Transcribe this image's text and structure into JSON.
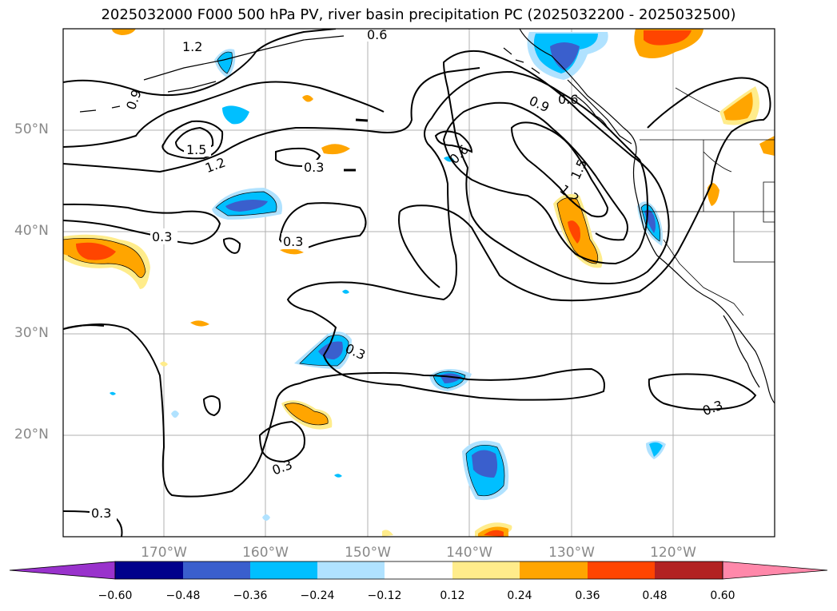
{
  "title": "2025032000 F000 500 hPa PV, river basin precipitation PC (2025032200 - 2025032500)",
  "lat_labels": [
    "50°N",
    "40°N",
    "30°N",
    "20°N"
  ],
  "lon_labels": [
    "170°W",
    "160°W",
    "150°W",
    "140°W",
    "130°W",
    "120°W"
  ],
  "contour_labels": [
    "1.2",
    "0.6",
    "0.9",
    "1.5",
    "1.2",
    "0.3",
    "0.6",
    "0.9",
    "0.6",
    "1.5",
    "1.2",
    "0.3",
    "0.3",
    "0.3",
    "0.3",
    "0.3",
    "0.3"
  ],
  "colorbar": {
    "ticks": [
      "−0.60",
      "−0.48",
      "−0.36",
      "−0.24",
      "−0.12",
      "0.12",
      "0.24",
      "0.36",
      "0.48",
      "0.60"
    ],
    "colors": [
      "#9932cc",
      "#00008b",
      "#3a5fcd",
      "#00bfff",
      "#b0e2ff",
      "#ffffff",
      "#ffec8b",
      "#ffa500",
      "#ff4500",
      "#b22222",
      "#ff88aa"
    ]
  }
}
